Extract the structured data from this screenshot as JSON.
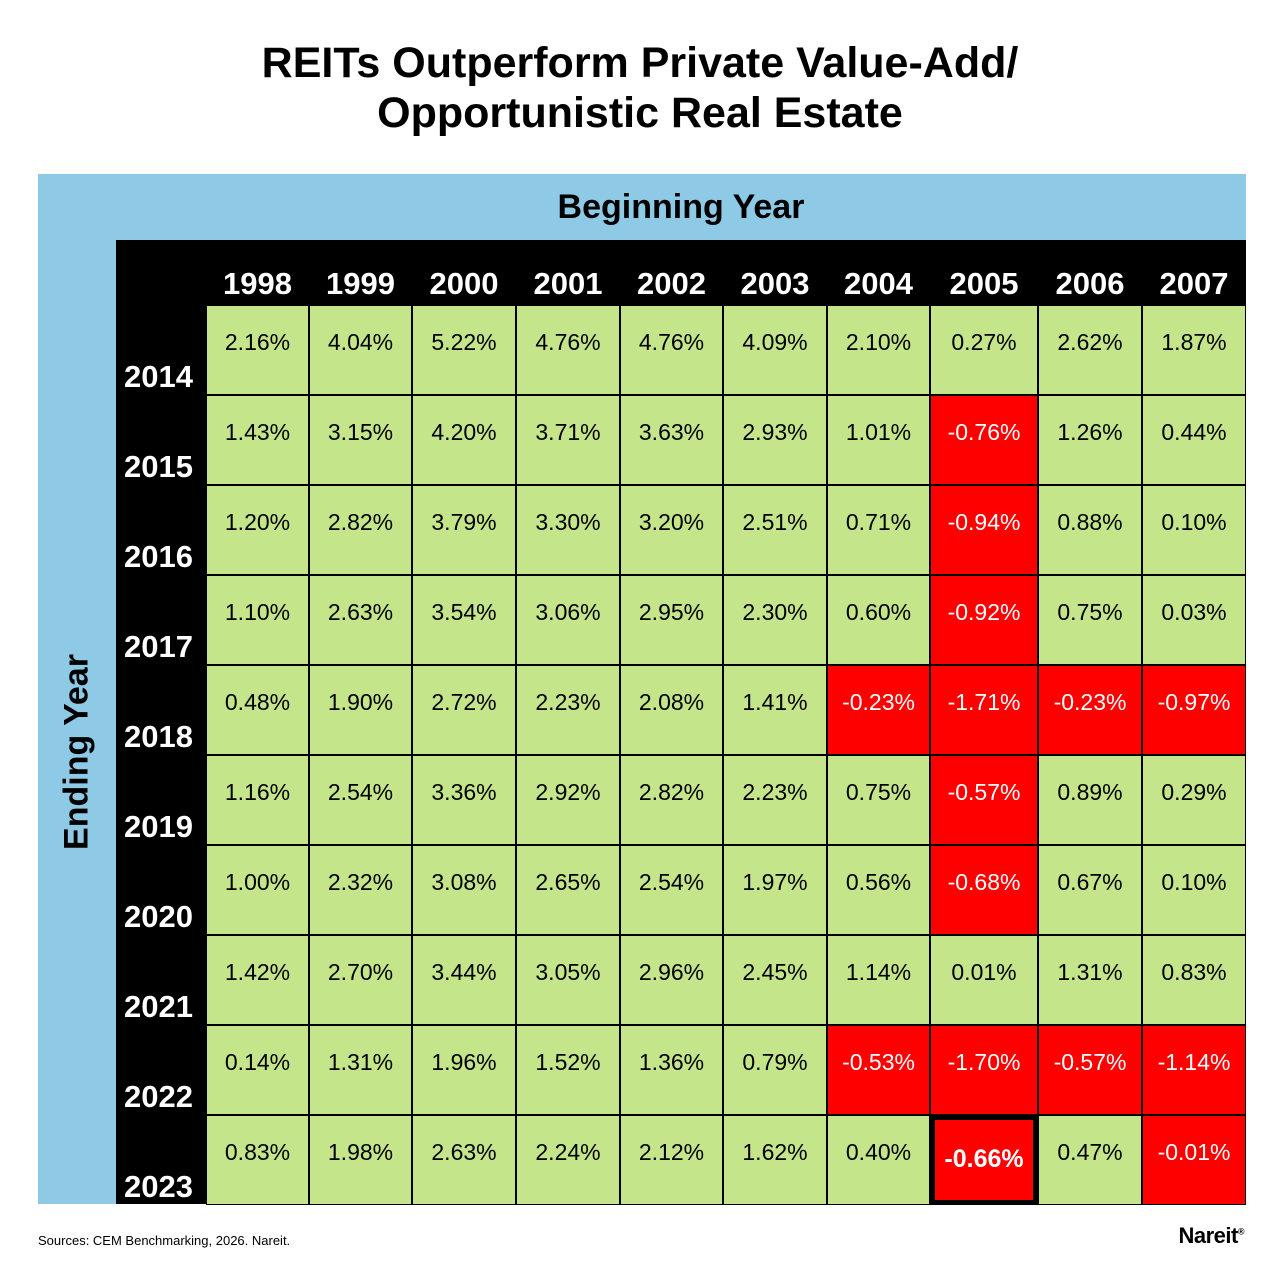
{
  "title_line1": "REITs Outperform Private Value-Add/",
  "title_line2": "Opportunistic Real Estate",
  "chart_data": {
    "type": "table",
    "title": "REITs Outperform Private Value-Add/ Opportunistic Real Estate",
    "xlabel": "Beginning Year",
    "ylabel": "Ending Year",
    "columns": [
      "1998",
      "1999",
      "2000",
      "2001",
      "2002",
      "2003",
      "2004",
      "2005",
      "2006",
      "2007"
    ],
    "rows": [
      "2014",
      "2015",
      "2016",
      "2017",
      "2018",
      "2019",
      "2020",
      "2021",
      "2022",
      "2023"
    ],
    "cells": [
      [
        "2.16%",
        "4.04%",
        "5.22%",
        "4.76%",
        "4.76%",
        "4.09%",
        "2.10%",
        "0.27%",
        "2.62%",
        "1.87%"
      ],
      [
        "1.43%",
        "3.15%",
        "4.20%",
        "3.71%",
        "3.63%",
        "2.93%",
        "1.01%",
        "-0.76%",
        "1.26%",
        "0.44%"
      ],
      [
        "1.20%",
        "2.82%",
        "3.79%",
        "3.30%",
        "3.20%",
        "2.51%",
        "0.71%",
        "-0.94%",
        "0.88%",
        "0.10%"
      ],
      [
        "1.10%",
        "2.63%",
        "3.54%",
        "3.06%",
        "2.95%",
        "2.30%",
        "0.60%",
        "-0.92%",
        "0.75%",
        "0.03%"
      ],
      [
        "0.48%",
        "1.90%",
        "2.72%",
        "2.23%",
        "2.08%",
        "1.41%",
        "-0.23%",
        "-1.71%",
        "-0.23%",
        "-0.97%"
      ],
      [
        "1.16%",
        "2.54%",
        "3.36%",
        "2.92%",
        "2.82%",
        "2.23%",
        "0.75%",
        "-0.57%",
        "0.89%",
        "0.29%"
      ],
      [
        "1.00%",
        "2.32%",
        "3.08%",
        "2.65%",
        "2.54%",
        "1.97%",
        "0.56%",
        "-0.68%",
        "0.67%",
        "0.10%"
      ],
      [
        "1.42%",
        "2.70%",
        "3.44%",
        "3.05%",
        "2.96%",
        "2.45%",
        "1.14%",
        "0.01%",
        "1.31%",
        "0.83%"
      ],
      [
        "0.14%",
        "1.31%",
        "1.96%",
        "1.52%",
        "1.36%",
        "0.79%",
        "-0.53%",
        "-1.70%",
        "-0.57%",
        "-1.14%"
      ],
      [
        "0.83%",
        "1.98%",
        "2.63%",
        "2.24%",
        "2.12%",
        "1.62%",
        "0.40%",
        "-0.66%",
        "0.47%",
        "-0.01%"
      ]
    ],
    "highlight_cell": {
      "row": "2023",
      "column": "2005"
    },
    "colors": {
      "positive": "#c5e58a",
      "negative": "#ff0000",
      "header_bg": "#000000",
      "axis_band": "#8ecae6"
    }
  },
  "footer": {
    "source": "Sources: CEM Benchmarking, 2026. Nareit.",
    "brand": "Nareit",
    "brand_mark": "®"
  }
}
